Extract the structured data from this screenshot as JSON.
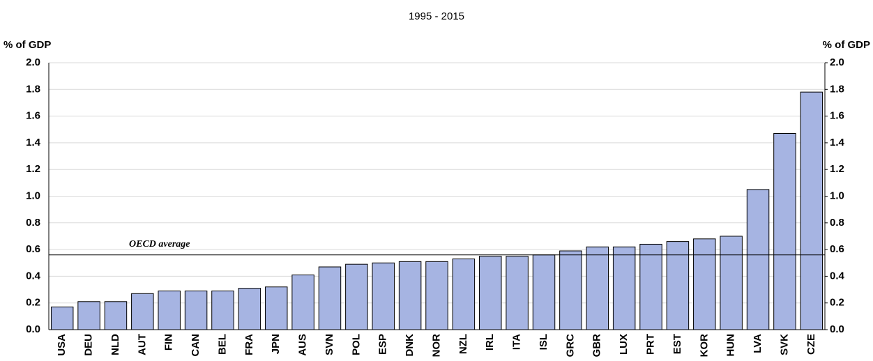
{
  "chart_data": {
    "type": "bar",
    "title": "1995 - 2015",
    "ylabel": "% of GDP",
    "y2label": "% of GDP",
    "categories": [
      "USA",
      "DEU",
      "NLD",
      "AUT",
      "FIN",
      "CAN",
      "BEL",
      "FRA",
      "JPN",
      "AUS",
      "SVN",
      "POL",
      "ESP",
      "DNK",
      "NOR",
      "NZL",
      "IRL",
      "ITA",
      "ISL",
      "GRC",
      "GBR",
      "LUX",
      "PRT",
      "EST",
      "KOR",
      "HUN",
      "LVA",
      "SVK",
      "CZE"
    ],
    "values": [
      0.17,
      0.21,
      0.21,
      0.27,
      0.29,
      0.29,
      0.29,
      0.31,
      0.32,
      0.41,
      0.47,
      0.49,
      0.5,
      0.51,
      0.51,
      0.53,
      0.55,
      0.55,
      0.56,
      0.59,
      0.62,
      0.62,
      0.64,
      0.66,
      0.68,
      0.7,
      1.05,
      1.47,
      1.78
    ],
    "color": "#a6b4e2",
    "ylim": [
      0,
      2
    ],
    "yticks": [
      {
        "value": 0,
        "label": "0.0"
      },
      {
        "value": 0.2,
        "label": "0.2"
      },
      {
        "value": 0.4,
        "label": "0.4"
      },
      {
        "value": 0.6,
        "label": "0.6"
      },
      {
        "value": 0.8,
        "label": "0.8"
      },
      {
        "value": 1,
        "label": "1.0"
      },
      {
        "value": 1.2,
        "label": "1.2"
      },
      {
        "value": 1.4,
        "label": "1.4"
      },
      {
        "value": 1.6,
        "label": "1.6"
      },
      {
        "value": 1.8,
        "label": "1.8"
      },
      {
        "value": 2,
        "label": "2.0"
      }
    ],
    "y2lim": [
      0,
      2
    ],
    "y2ticks": [
      {
        "value": 0,
        "label": "0.0"
      },
      {
        "value": 0.2,
        "label": "0.2"
      },
      {
        "value": 0.4,
        "label": "0.4"
      },
      {
        "value": 0.6,
        "label": "0.6"
      },
      {
        "value": 0.8,
        "label": "0.8"
      },
      {
        "value": 1,
        "label": "1.0"
      },
      {
        "value": 1.2,
        "label": "1.2"
      },
      {
        "value": 1.4,
        "label": "1.4"
      },
      {
        "value": 1.6,
        "label": "1.6"
      },
      {
        "value": 1.8,
        "label": "1.8"
      },
      {
        "value": 2,
        "label": "2.0"
      }
    ],
    "reference_line": {
      "value": 0.56,
      "label": "OECD average"
    },
    "grid": true
  }
}
